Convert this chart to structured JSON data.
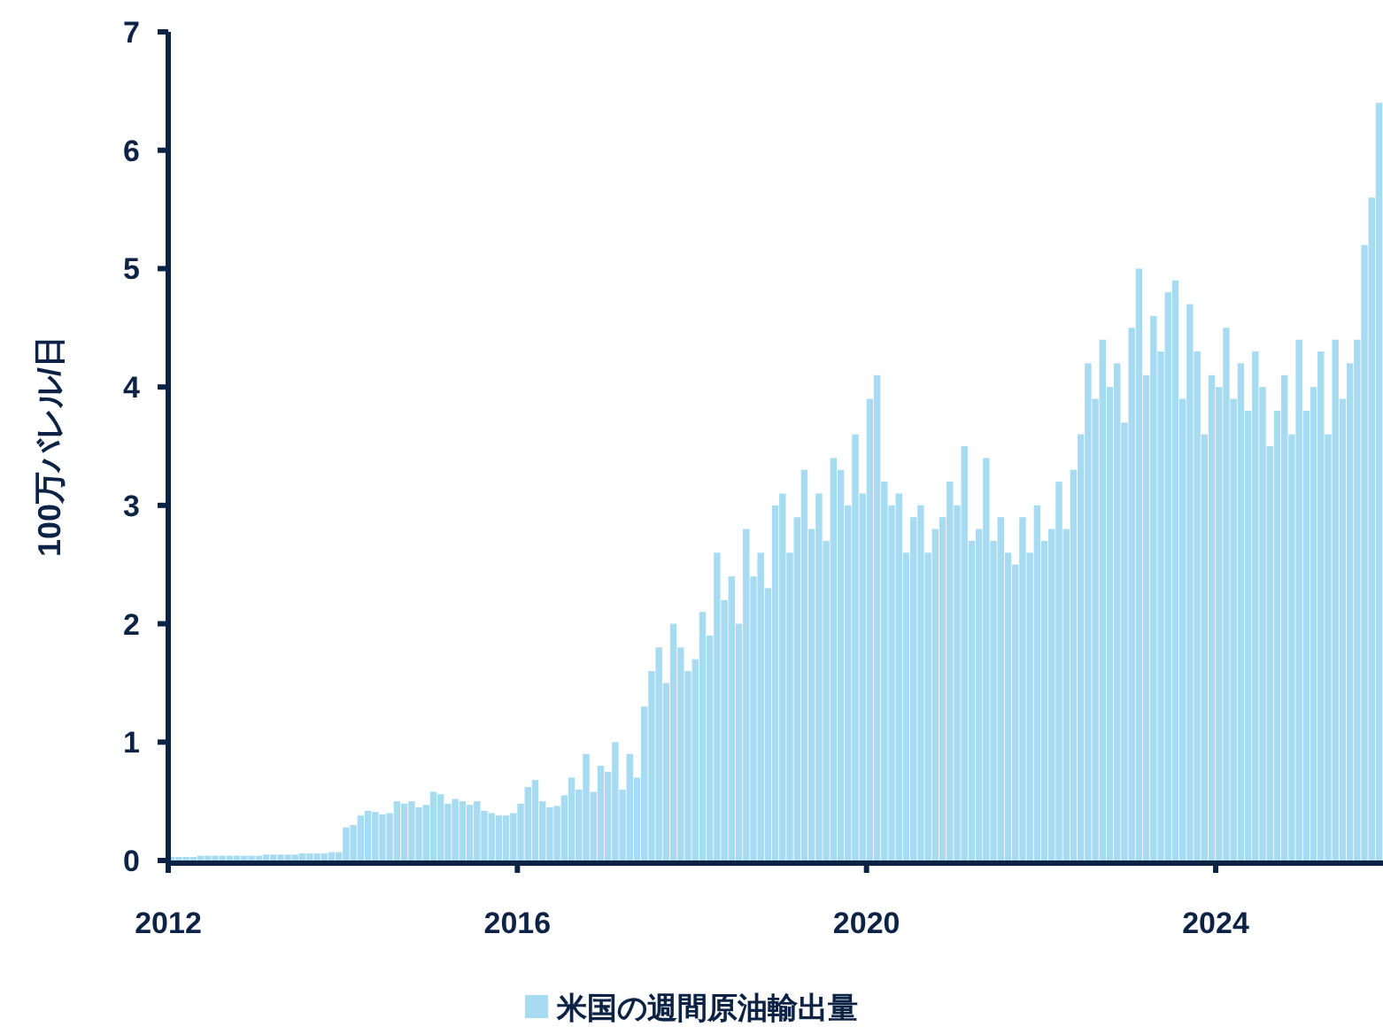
{
  "chart_data": {
    "type": "bar",
    "ylabel": "100万バレル/日",
    "legend": "bottom",
    "grid": false,
    "xlim": [
      "2012-01",
      "2025-12"
    ],
    "ylim": [
      0,
      7
    ],
    "yticks": [
      0,
      1,
      2,
      3,
      4,
      5,
      6,
      7
    ],
    "xticks": [
      {
        "value": "2012",
        "label": "2012"
      },
      {
        "value": "2016",
        "label": "2016"
      },
      {
        "value": "2020",
        "label": "2020"
      },
      {
        "value": "2024",
        "label": "2024"
      }
    ],
    "x": [
      "2012-01",
      "2012-02",
      "2012-03",
      "2012-04",
      "2012-05",
      "2012-06",
      "2012-07",
      "2012-08",
      "2012-09",
      "2012-10",
      "2012-11",
      "2012-12",
      "2013-01",
      "2013-02",
      "2013-03",
      "2013-04",
      "2013-05",
      "2013-06",
      "2013-07",
      "2013-08",
      "2013-09",
      "2013-10",
      "2013-11",
      "2013-12",
      "2014-01",
      "2014-02",
      "2014-03",
      "2014-04",
      "2014-05",
      "2014-06",
      "2014-07",
      "2014-08",
      "2014-09",
      "2014-10",
      "2014-11",
      "2014-12",
      "2015-01",
      "2015-02",
      "2015-03",
      "2015-04",
      "2015-05",
      "2015-06",
      "2015-07",
      "2015-08",
      "2015-09",
      "2015-10",
      "2015-11",
      "2015-12",
      "2016-01",
      "2016-02",
      "2016-03",
      "2016-04",
      "2016-05",
      "2016-06",
      "2016-07",
      "2016-08",
      "2016-09",
      "2016-10",
      "2016-11",
      "2016-12",
      "2017-01",
      "2017-02",
      "2017-03",
      "2017-04",
      "2017-05",
      "2017-06",
      "2017-07",
      "2017-08",
      "2017-09",
      "2017-10",
      "2017-11",
      "2017-12",
      "2018-01",
      "2018-02",
      "2018-03",
      "2018-04",
      "2018-05",
      "2018-06",
      "2018-07",
      "2018-08",
      "2018-09",
      "2018-10",
      "2018-11",
      "2018-12",
      "2019-01",
      "2019-02",
      "2019-03",
      "2019-04",
      "2019-05",
      "2019-06",
      "2019-07",
      "2019-08",
      "2019-09",
      "2019-10",
      "2019-11",
      "2019-12",
      "2020-01",
      "2020-02",
      "2020-03",
      "2020-04",
      "2020-05",
      "2020-06",
      "2020-07",
      "2020-08",
      "2020-09",
      "2020-10",
      "2020-11",
      "2020-12",
      "2021-01",
      "2021-02",
      "2021-03",
      "2021-04",
      "2021-05",
      "2021-06",
      "2021-07",
      "2021-08",
      "2021-09",
      "2021-10",
      "2021-11",
      "2021-12",
      "2022-01",
      "2022-02",
      "2022-03",
      "2022-04",
      "2022-05",
      "2022-06",
      "2022-07",
      "2022-08",
      "2022-09",
      "2022-10",
      "2022-11",
      "2022-12",
      "2023-01",
      "2023-02",
      "2023-03",
      "2023-04",
      "2023-05",
      "2023-06",
      "2023-07",
      "2023-08",
      "2023-09",
      "2023-10",
      "2023-11",
      "2023-12",
      "2024-01",
      "2024-02",
      "2024-03",
      "2024-04",
      "2024-05",
      "2024-06",
      "2024-07",
      "2024-08",
      "2024-09",
      "2024-10",
      "2024-11",
      "2024-12",
      "2025-01",
      "2025-02",
      "2025-03",
      "2025-04",
      "2025-05",
      "2025-06",
      "2025-07",
      "2025-08",
      "2025-09",
      "2025-10",
      "2025-11"
    ],
    "series": [
      {
        "name": "米国の週間原油輸出量",
        "color": "#a6dbf1",
        "values": [
          0.03,
          0.03,
          0.03,
          0.03,
          0.04,
          0.04,
          0.04,
          0.04,
          0.04,
          0.04,
          0.04,
          0.04,
          0.04,
          0.05,
          0.05,
          0.05,
          0.05,
          0.05,
          0.06,
          0.06,
          0.06,
          0.06,
          0.07,
          0.07,
          0.28,
          0.3,
          0.38,
          0.42,
          0.41,
          0.39,
          0.4,
          0.5,
          0.48,
          0.5,
          0.45,
          0.47,
          0.58,
          0.56,
          0.48,
          0.52,
          0.5,
          0.47,
          0.5,
          0.42,
          0.4,
          0.38,
          0.38,
          0.4,
          0.48,
          0.62,
          0.68,
          0.5,
          0.45,
          0.46,
          0.55,
          0.7,
          0.6,
          0.9,
          0.58,
          0.8,
          0.75,
          1.0,
          0.6,
          0.9,
          0.7,
          1.3,
          1.6,
          1.8,
          1.5,
          2.0,
          1.8,
          1.6,
          1.7,
          2.1,
          1.9,
          2.6,
          2.2,
          2.4,
          2.0,
          2.8,
          2.4,
          2.6,
          2.3,
          3.0,
          3.1,
          2.6,
          2.9,
          3.3,
          2.8,
          3.1,
          2.7,
          3.4,
          3.3,
          3.0,
          3.6,
          3.1,
          3.9,
          4.1,
          3.2,
          3.0,
          3.1,
          2.6,
          2.9,
          3.0,
          2.6,
          2.8,
          2.9,
          3.2,
          3.0,
          3.5,
          2.7,
          2.8,
          3.4,
          2.7,
          2.9,
          2.6,
          2.5,
          2.9,
          2.6,
          3.0,
          2.7,
          2.8,
          3.2,
          2.8,
          3.3,
          3.6,
          4.2,
          3.9,
          4.4,
          4.0,
          4.2,
          3.7,
          4.5,
          5.0,
          4.1,
          4.6,
          4.3,
          4.8,
          4.9,
          3.9,
          4.7,
          4.3,
          3.6,
          4.1,
          4.0,
          4.5,
          3.9,
          4.2,
          3.8,
          4.3,
          4.0,
          3.5,
          3.8,
          4.1,
          3.6,
          4.4,
          3.8,
          4.0,
          4.3,
          3.6,
          4.4,
          3.9,
          4.2,
          4.4,
          5.2,
          5.6,
          6.4
        ]
      }
    ]
  }
}
